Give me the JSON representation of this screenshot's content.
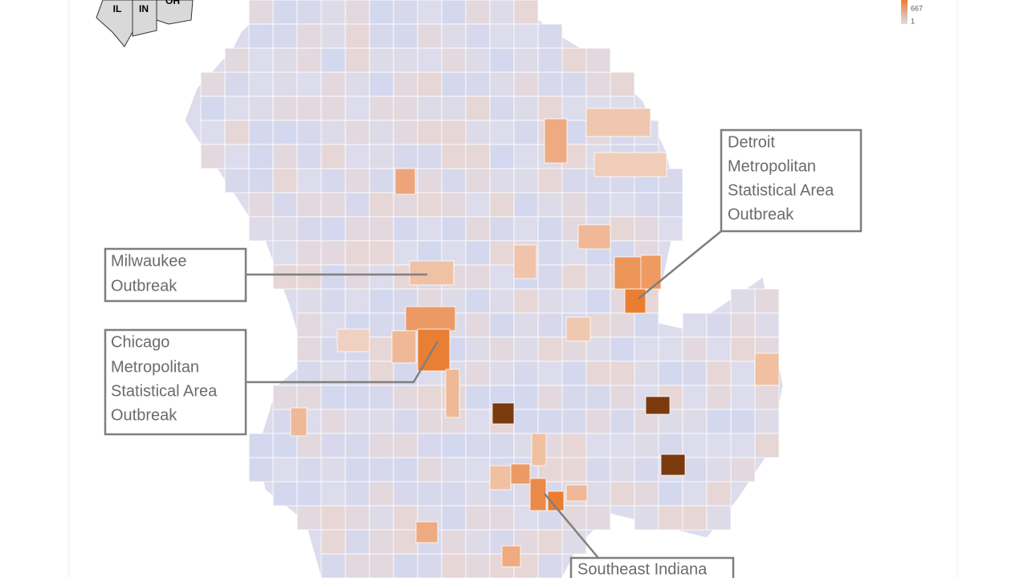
{
  "inset": {
    "labels": [
      "IL",
      "IN",
      "OH"
    ]
  },
  "legend": {
    "max": 667,
    "min": 1
  },
  "callouts": [
    {
      "lines": [
        "Detroit",
        "Metropolitan",
        "Statistical Area",
        "Outbreak"
      ]
    },
    {
      "lines": [
        "Milwaukee",
        "Outbreak"
      ]
    },
    {
      "lines": [
        "Chicago",
        "Metropolitan",
        "Statistical Area",
        "Outbreak"
      ]
    },
    {
      "lines": [
        "Southeast Indiana"
      ]
    }
  ]
}
